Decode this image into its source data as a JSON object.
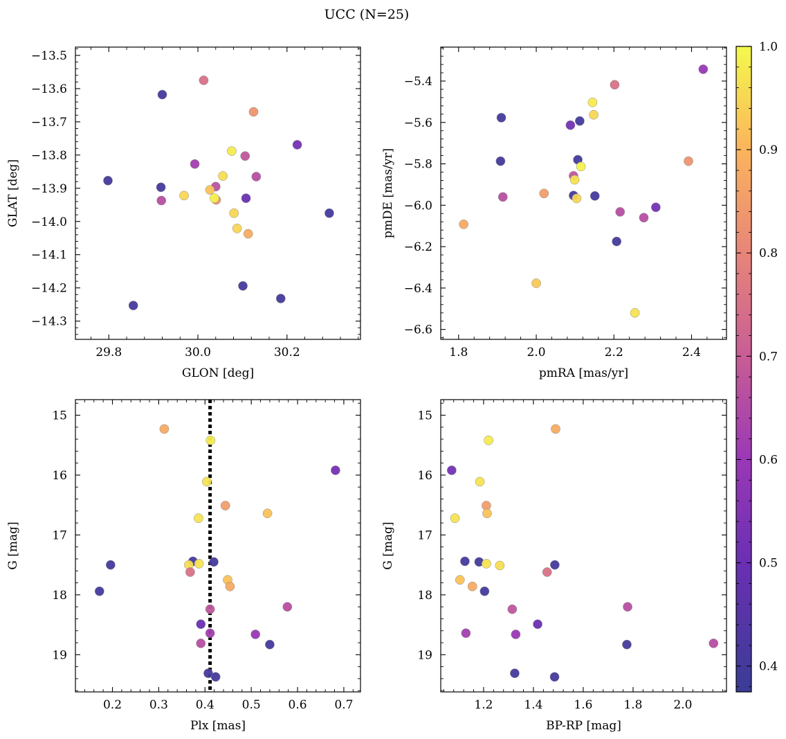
{
  "title": "UCC (N=25)",
  "colorbar": {
    "ticks": [
      0.4,
      0.5,
      0.6,
      0.7,
      0.8,
      0.9,
      1.0
    ],
    "tick_labels": [
      "0.4",
      "0.5",
      "0.6",
      "0.7",
      "0.8",
      "0.9",
      "1.0"
    ],
    "range": [
      0.375,
      1.0
    ],
    "colormap": "plasma"
  },
  "chart_data": [
    {
      "type": "scatter",
      "xlabel": "GLON [deg]",
      "ylabel": "GLAT [deg]",
      "xlim": [
        29.725,
        30.365
      ],
      "ylim": [
        -14.355,
        -13.475
      ],
      "xticks": [
        29.8,
        30.0,
        30.2
      ],
      "xtick_labels": [
        "29.8",
        "30.0",
        "30.2"
      ],
      "yticks": [
        -14.3,
        -14.2,
        -14.1,
        -14.0,
        -13.9,
        -13.8,
        -13.7,
        -13.6,
        -13.5
      ],
      "ytick_labels": [
        "−14.3",
        "−14.2",
        "−14.1",
        "−14.0",
        "−13.9",
        "−13.8",
        "−13.7",
        "−13.6",
        "−13.5"
      ],
      "points": [
        {
          "x": 30.013,
          "y": -13.575,
          "c": 0.75
        },
        {
          "x": 29.92,
          "y": -13.618,
          "c": 0.4
        },
        {
          "x": 30.125,
          "y": -13.67,
          "c": 0.83
        },
        {
          "x": 30.223,
          "y": -13.769,
          "c": 0.52
        },
        {
          "x": 30.076,
          "y": -13.788,
          "c": 0.98
        },
        {
          "x": 29.993,
          "y": -13.827,
          "c": 0.62
        },
        {
          "x": 30.106,
          "y": -13.803,
          "c": 0.68
        },
        {
          "x": 30.131,
          "y": -13.865,
          "c": 0.66
        },
        {
          "x": 29.798,
          "y": -13.877,
          "c": 0.4
        },
        {
          "x": 30.056,
          "y": -13.863,
          "c": 0.96
        },
        {
          "x": 29.917,
          "y": -13.897,
          "c": 0.4
        },
        {
          "x": 30.04,
          "y": -13.895,
          "c": 0.67
        },
        {
          "x": 30.027,
          "y": -13.905,
          "c": 0.92
        },
        {
          "x": 29.969,
          "y": -13.922,
          "c": 0.95
        },
        {
          "x": 30.041,
          "y": -13.935,
          "c": 0.83
        },
        {
          "x": 30.037,
          "y": -13.93,
          "c": 0.99
        },
        {
          "x": 29.918,
          "y": -13.937,
          "c": 0.66
        },
        {
          "x": 30.108,
          "y": -13.93,
          "c": 0.5
        },
        {
          "x": 30.081,
          "y": -13.975,
          "c": 0.95
        },
        {
          "x": 30.295,
          "y": -13.975,
          "c": 0.4
        },
        {
          "x": 30.088,
          "y": -14.021,
          "c": 0.95
        },
        {
          "x": 30.113,
          "y": -14.037,
          "c": 0.88
        },
        {
          "x": 30.101,
          "y": -14.194,
          "c": 0.4
        },
        {
          "x": 30.186,
          "y": -14.232,
          "c": 0.4
        },
        {
          "x": 29.855,
          "y": -14.253,
          "c": 0.4
        }
      ]
    },
    {
      "type": "scatter",
      "xlabel": "pmRA [mas/yr]",
      "ylabel": "pmDE [mas/yr]",
      "xlim": [
        1.754,
        2.49
      ],
      "ylim": [
        -6.648,
        -5.236
      ],
      "xticks": [
        1.8,
        2.0,
        2.2,
        2.4
      ],
      "xtick_labels": [
        "1.8",
        "2.0",
        "2.2",
        "2.4"
      ],
      "yticks": [
        -6.6,
        -6.4,
        -6.2,
        -6.0,
        -5.8,
        -5.6,
        -5.4
      ],
      "ytick_labels": [
        "−6.6",
        "−6.4",
        "−6.2",
        "−6.0",
        "−5.8",
        "−5.6",
        "−5.4"
      ],
      "points": [
        {
          "x": 2.43,
          "y": -5.343,
          "c": 0.6
        },
        {
          "x": 2.202,
          "y": -5.418,
          "c": 0.75
        },
        {
          "x": 2.145,
          "y": -5.503,
          "c": 0.98
        },
        {
          "x": 2.148,
          "y": -5.563,
          "c": 0.95
        },
        {
          "x": 1.91,
          "y": -5.577,
          "c": 0.4
        },
        {
          "x": 2.112,
          "y": -5.593,
          "c": 0.4
        },
        {
          "x": 2.088,
          "y": -5.613,
          "c": 0.52
        },
        {
          "x": 1.908,
          "y": -5.787,
          "c": 0.4
        },
        {
          "x": 2.107,
          "y": -5.78,
          "c": 0.4
        },
        {
          "x": 2.392,
          "y": -5.787,
          "c": 0.83
        },
        {
          "x": 2.115,
          "y": -5.813,
          "c": 0.99
        },
        {
          "x": 2.096,
          "y": -5.858,
          "c": 0.68
        },
        {
          "x": 2.099,
          "y": -5.877,
          "c": 0.97
        },
        {
          "x": 2.02,
          "y": -5.943,
          "c": 0.85
        },
        {
          "x": 2.096,
          "y": -5.953,
          "c": 0.4
        },
        {
          "x": 2.151,
          "y": -5.955,
          "c": 0.4
        },
        {
          "x": 1.914,
          "y": -5.96,
          "c": 0.66
        },
        {
          "x": 2.104,
          "y": -5.967,
          "c": 0.95
        },
        {
          "x": 2.308,
          "y": -6.01,
          "c": 0.52
        },
        {
          "x": 2.216,
          "y": -6.032,
          "c": 0.66
        },
        {
          "x": 2.277,
          "y": -6.06,
          "c": 0.66
        },
        {
          "x": 1.813,
          "y": -6.092,
          "c": 0.88
        },
        {
          "x": 2.207,
          "y": -6.175,
          "c": 0.4
        },
        {
          "x": 2.0,
          "y": -6.377,
          "c": 0.93
        },
        {
          "x": 2.254,
          "y": -6.52,
          "c": 0.97
        }
      ]
    },
    {
      "type": "scatter",
      "xlabel": "Plx [mas]",
      "ylabel": "G [mag]",
      "xlim": [
        0.12,
        0.736
      ],
      "ylim": [
        19.621,
        14.74
      ],
      "y_inverted": true,
      "xticks": [
        0.2,
        0.3,
        0.4,
        0.5,
        0.6,
        0.7
      ],
      "xtick_labels": [
        "0.2",
        "0.3",
        "0.4",
        "0.5",
        "0.6",
        "0.7"
      ],
      "yticks": [
        15,
        16,
        17,
        18,
        19
      ],
      "ytick_labels": [
        "15",
        "16",
        "17",
        "18",
        "19"
      ],
      "vline": {
        "x": 0.411,
        "style": "dotted",
        "color": "#000000"
      },
      "points": [
        {
          "x": 0.312,
          "y": 15.23,
          "c": 0.88
        },
        {
          "x": 0.412,
          "y": 15.42,
          "c": 0.98
        },
        {
          "x": 0.682,
          "y": 15.92,
          "c": 0.52
        },
        {
          "x": 0.404,
          "y": 16.11,
          "c": 0.97
        },
        {
          "x": 0.444,
          "y": 16.51,
          "c": 0.85
        },
        {
          "x": 0.535,
          "y": 16.64,
          "c": 0.92
        },
        {
          "x": 0.386,
          "y": 16.72,
          "c": 0.97
        },
        {
          "x": 0.374,
          "y": 17.44,
          "c": 0.4
        },
        {
          "x": 0.419,
          "y": 17.45,
          "c": 0.4
        },
        {
          "x": 0.387,
          "y": 17.48,
          "c": 0.97
        },
        {
          "x": 0.365,
          "y": 17.5,
          "c": 0.96
        },
        {
          "x": 0.196,
          "y": 17.5,
          "c": 0.4
        },
        {
          "x": 0.368,
          "y": 17.62,
          "c": 0.75
        },
        {
          "x": 0.449,
          "y": 17.75,
          "c": 0.92
        },
        {
          "x": 0.454,
          "y": 17.86,
          "c": 0.88
        },
        {
          "x": 0.172,
          "y": 17.94,
          "c": 0.4
        },
        {
          "x": 0.578,
          "y": 18.2,
          "c": 0.66
        },
        {
          "x": 0.411,
          "y": 18.24,
          "c": 0.68
        },
        {
          "x": 0.391,
          "y": 18.49,
          "c": 0.5
        },
        {
          "x": 0.411,
          "y": 18.64,
          "c": 0.62
        },
        {
          "x": 0.509,
          "y": 18.66,
          "c": 0.6
        },
        {
          "x": 0.391,
          "y": 18.81,
          "c": 0.66
        },
        {
          "x": 0.54,
          "y": 18.83,
          "c": 0.4
        },
        {
          "x": 0.407,
          "y": 19.31,
          "c": 0.4
        },
        {
          "x": 0.423,
          "y": 19.37,
          "c": 0.4
        }
      ]
    },
    {
      "type": "scatter",
      "xlabel": "BP-RP [mag]",
      "ylabel": "G [mag]",
      "xlim": [
        1.028,
        2.175
      ],
      "ylim": [
        19.621,
        14.74
      ],
      "y_inverted": true,
      "xticks": [
        1.2,
        1.4,
        1.6,
        1.8,
        2.0
      ],
      "xtick_labels": [
        "1.2",
        "1.4",
        "1.6",
        "1.8",
        "2.0"
      ],
      "yticks": [
        15,
        16,
        17,
        18,
        19
      ],
      "ytick_labels": [
        "15",
        "16",
        "17",
        "18",
        "19"
      ],
      "points": [
        {
          "x": 1.489,
          "y": 15.23,
          "c": 0.88
        },
        {
          "x": 1.22,
          "y": 15.42,
          "c": 0.98
        },
        {
          "x": 1.072,
          "y": 15.92,
          "c": 0.52
        },
        {
          "x": 1.185,
          "y": 16.11,
          "c": 0.97
        },
        {
          "x": 1.211,
          "y": 16.51,
          "c": 0.85
        },
        {
          "x": 1.214,
          "y": 16.64,
          "c": 0.92
        },
        {
          "x": 1.085,
          "y": 16.72,
          "c": 0.97
        },
        {
          "x": 1.125,
          "y": 17.44,
          "c": 0.4
        },
        {
          "x": 1.182,
          "y": 17.45,
          "c": 0.4
        },
        {
          "x": 1.211,
          "y": 17.48,
          "c": 0.97
        },
        {
          "x": 1.486,
          "y": 17.5,
          "c": 0.4
        },
        {
          "x": 1.265,
          "y": 17.51,
          "c": 0.96
        },
        {
          "x": 1.455,
          "y": 17.62,
          "c": 0.75
        },
        {
          "x": 1.105,
          "y": 17.75,
          "c": 0.92
        },
        {
          "x": 1.155,
          "y": 17.86,
          "c": 0.88
        },
        {
          "x": 1.204,
          "y": 17.94,
          "c": 0.4
        },
        {
          "x": 1.778,
          "y": 18.2,
          "c": 0.66
        },
        {
          "x": 1.315,
          "y": 18.24,
          "c": 0.68
        },
        {
          "x": 1.417,
          "y": 18.49,
          "c": 0.5
        },
        {
          "x": 1.129,
          "y": 18.64,
          "c": 0.62
        },
        {
          "x": 1.329,
          "y": 18.66,
          "c": 0.6
        },
        {
          "x": 1.775,
          "y": 18.83,
          "c": 0.4
        },
        {
          "x": 2.123,
          "y": 18.81,
          "c": 0.66
        },
        {
          "x": 1.325,
          "y": 19.31,
          "c": 0.4
        },
        {
          "x": 1.485,
          "y": 19.37,
          "c": 0.4
        }
      ]
    }
  ]
}
